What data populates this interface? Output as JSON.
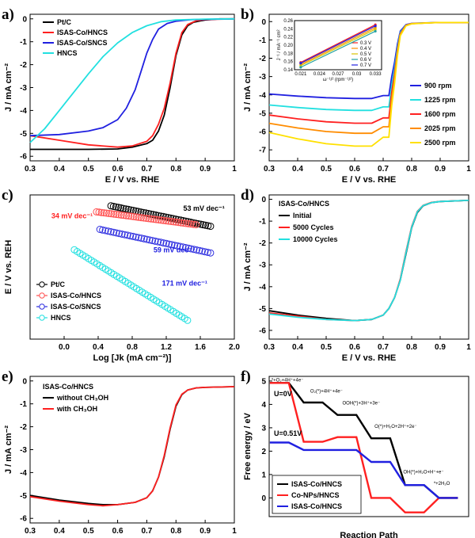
{
  "chart_data": [
    {
      "panel": "a)",
      "type": "line",
      "xlabel": "E / V vs. RHE",
      "ylabel": "J / mA cm⁻²",
      "xlim": [
        0.3,
        1.0
      ],
      "ylim": [
        -6.2,
        0.2
      ],
      "xticks": [
        0.3,
        0.4,
        0.5,
        0.6,
        0.7,
        0.8,
        0.9,
        1.0
      ],
      "yticks": [
        -6,
        -5,
        -4,
        -3,
        -2,
        -1,
        0
      ],
      "legend": "top-left",
      "series": [
        {
          "name": "Pt/C",
          "color": "#000000",
          "x": [
            0.3,
            0.4,
            0.5,
            0.6,
            0.65,
            0.7,
            0.72,
            0.74,
            0.76,
            0.78,
            0.8,
            0.82,
            0.84,
            0.86,
            0.9,
            0.95,
            1.0
          ],
          "y": [
            -5.7,
            -5.7,
            -5.7,
            -5.68,
            -5.6,
            -5.45,
            -5.3,
            -4.9,
            -4.2,
            -3.0,
            -1.6,
            -0.7,
            -0.3,
            -0.15,
            -0.05,
            0.0,
            0.0
          ]
        },
        {
          "name": "ISAS-Co/HNCS",
          "color": "#ff2020",
          "x": [
            0.3,
            0.4,
            0.5,
            0.6,
            0.65,
            0.7,
            0.72,
            0.74,
            0.76,
            0.78,
            0.8,
            0.82,
            0.84,
            0.87,
            0.9,
            1.0
          ],
          "y": [
            -5.1,
            -5.3,
            -5.5,
            -5.6,
            -5.55,
            -5.35,
            -5.1,
            -4.6,
            -3.9,
            -2.8,
            -1.5,
            -0.6,
            -0.25,
            -0.08,
            -0.03,
            0.0
          ]
        },
        {
          "name": "ISAS-Co/SNCS",
          "color": "#2020e0",
          "x": [
            0.3,
            0.4,
            0.5,
            0.55,
            0.6,
            0.63,
            0.66,
            0.68,
            0.7,
            0.72,
            0.74,
            0.77,
            0.8,
            0.85,
            0.9,
            1.0
          ],
          "y": [
            -5.1,
            -5.05,
            -4.9,
            -4.75,
            -4.4,
            -3.9,
            -3.1,
            -2.3,
            -1.5,
            -0.9,
            -0.45,
            -0.2,
            -0.1,
            -0.04,
            -0.02,
            0.0
          ]
        },
        {
          "name": "HNCS",
          "color": "#22e0e0",
          "x": [
            0.3,
            0.35,
            0.4,
            0.45,
            0.5,
            0.55,
            0.6,
            0.65,
            0.7,
            0.75,
            0.8,
            0.9,
            1.0
          ],
          "y": [
            -5.4,
            -4.8,
            -4.0,
            -3.2,
            -2.4,
            -1.65,
            -1.05,
            -0.6,
            -0.3,
            -0.12,
            -0.05,
            -0.01,
            0.0
          ]
        }
      ]
    },
    {
      "panel": "b)",
      "type": "line",
      "xlabel": "E / V vs. RHE",
      "ylabel": "J / mA cm⁻²",
      "xlim": [
        0.3,
        1.0
      ],
      "ylim": [
        -7.6,
        0.4
      ],
      "xticks": [
        0.3,
        0.4,
        0.5,
        0.6,
        0.7,
        0.8,
        0.9,
        1.0
      ],
      "yticks": [
        -7,
        -6,
        -5,
        -4,
        -3,
        -2,
        -1,
        0
      ],
      "legend": "bottom-right",
      "series": [
        {
          "name": "900 rpm",
          "color": "#2020e0",
          "plateau": -3.95,
          "dip": -4.2
        },
        {
          "name": "1225 rpm",
          "color": "#22e0e0",
          "plateau": -4.55,
          "dip": -4.85
        },
        {
          "name": "1600 rpm",
          "color": "#ff2020",
          "plateau": -5.1,
          "dip": -5.55
        },
        {
          "name": "2025 rpm",
          "color": "#ff8c00",
          "plateau": -5.55,
          "dip": -6.1
        },
        {
          "name": "2500 rpm",
          "color": "#ffe000",
          "plateau": -6.05,
          "dip": -6.8
        }
      ],
      "inset": {
        "xlabel": "ω⁻¹/² (rpm⁻¹/²)",
        "ylabel": "J⁻¹ / mA⁻¹ cm²",
        "xlim": [
          0.02,
          0.034
        ],
        "ylim": [
          0.14,
          0.26
        ],
        "xticks": [
          0.021,
          0.024,
          0.027,
          0.03,
          0.033
        ],
        "yticks": [
          0.14,
          0.16,
          0.18,
          0.2,
          0.22,
          0.24,
          0.26
        ],
        "series": [
          {
            "name": "0.3 V",
            "color": "#ff2020",
            "x": [
              0.021,
              0.033
            ],
            "y": [
              0.158,
              0.25
            ]
          },
          {
            "name": "0.4 V",
            "color": "#ff8c00",
            "x": [
              0.021,
              0.033
            ],
            "y": [
              0.153,
              0.243
            ]
          },
          {
            "name": "0.5 V",
            "color": "#d8c000",
            "x": [
              0.021,
              0.033
            ],
            "y": [
              0.15,
              0.239
            ]
          },
          {
            "name": "0.6 V",
            "color": "#22a0a0",
            "x": [
              0.021,
              0.033
            ],
            "y": [
              0.146,
              0.234
            ]
          },
          {
            "name": "0.7 V",
            "color": "#2020e0",
            "x": [
              0.021,
              0.033
            ],
            "y": [
              0.156,
              0.247
            ]
          }
        ]
      }
    },
    {
      "panel": "c)",
      "type": "scatter",
      "xlabel": "Log [Jk (mA cm⁻²)]",
      "ylabel": "E / V vs. REH",
      "xlim": [
        -0.4,
        2.0
      ],
      "ylim": [
        0.38,
        0.84
      ],
      "xticks": [
        0.0,
        0.4,
        0.8,
        1.2,
        1.6,
        2.0
      ],
      "xtick_labels": [
        "0.0",
        "0.4",
        "0.8",
        "1.2",
        "1.6",
        "2.0"
      ],
      "legend": "bottom-left",
      "series": [
        {
          "name": "Pt/C",
          "color": "#000000",
          "x": [
            0.55,
            1.72
          ],
          "y": [
            0.805,
            0.74
          ]
        },
        {
          "name": "ISAS-Co/HNCS",
          "color": "#ff5050",
          "x": [
            0.38,
            1.55
          ],
          "y": [
            0.786,
            0.745
          ]
        },
        {
          "name": "ISAS-Co/SNCS",
          "color": "#3030e0",
          "x": [
            0.42,
            1.72
          ],
          "y": [
            0.73,
            0.655
          ]
        },
        {
          "name": "HNCS",
          "color": "#22e0e0",
          "x": [
            0.12,
            1.45
          ],
          "y": [
            0.665,
            0.44
          ]
        }
      ],
      "annotations": [
        {
          "text": "53 mV dec⁻¹",
          "color": "#000000",
          "x": 1.4,
          "y": 0.79
        },
        {
          "text": "34 mV dec⁻¹",
          "color": "#ff2020",
          "x": -0.15,
          "y": 0.765
        },
        {
          "text": "59 mV dec⁻¹",
          "color": "#2020e0",
          "x": 1.05,
          "y": 0.657
        },
        {
          "text": "171 mV dec⁻¹",
          "color": "#2020e0",
          "x": 1.15,
          "y": 0.55
        }
      ]
    },
    {
      "panel": "d)",
      "type": "line",
      "xlabel": "E / V vs. RHE",
      "ylabel": "J / mA cm⁻²",
      "xlim": [
        0.3,
        1.0
      ],
      "ylim": [
        -6.4,
        0.2
      ],
      "xticks": [
        0.3,
        0.4,
        0.5,
        0.6,
        0.7,
        0.8,
        0.9,
        1.0
      ],
      "yticks": [
        -6,
        -5,
        -4,
        -3,
        -2,
        -1,
        0
      ],
      "legend_title": "ISAS-Co/HNCS",
      "legend": "top-left",
      "series": [
        {
          "name": "Initial",
          "color": "#000000",
          "x": [
            0.3,
            0.4,
            0.5,
            0.6,
            0.66,
            0.7,
            0.72,
            0.74,
            0.76,
            0.78,
            0.8,
            0.82,
            0.84,
            0.87,
            0.9,
            1.0
          ],
          "y": [
            -5.1,
            -5.3,
            -5.45,
            -5.55,
            -5.5,
            -5.3,
            -5.0,
            -4.5,
            -3.7,
            -2.5,
            -1.3,
            -0.6,
            -0.3,
            -0.15,
            -0.1,
            -0.05
          ]
        },
        {
          "name": "5000 Cycles",
          "color": "#ff2020",
          "x": [
            0.3,
            0.4,
            0.5,
            0.6,
            0.66,
            0.7,
            0.72,
            0.74,
            0.76,
            0.78,
            0.8,
            0.82,
            0.84,
            0.87,
            0.9,
            1.0
          ],
          "y": [
            -5.2,
            -5.35,
            -5.5,
            -5.55,
            -5.5,
            -5.3,
            -5.0,
            -4.5,
            -3.65,
            -2.4,
            -1.25,
            -0.55,
            -0.28,
            -0.14,
            -0.1,
            -0.05
          ]
        },
        {
          "name": "10000 Cycles",
          "color": "#22e0e0",
          "x": [
            0.3,
            0.4,
            0.5,
            0.6,
            0.66,
            0.7,
            0.72,
            0.74,
            0.76,
            0.78,
            0.8,
            0.82,
            0.84,
            0.87,
            0.9,
            1.0
          ],
          "y": [
            -5.25,
            -5.4,
            -5.5,
            -5.55,
            -5.5,
            -5.3,
            -5.0,
            -4.5,
            -3.7,
            -2.45,
            -1.28,
            -0.57,
            -0.29,
            -0.15,
            -0.1,
            -0.05
          ]
        }
      ]
    },
    {
      "panel": "e)",
      "type": "line",
      "xlabel": "E / V vs. RHE",
      "ylabel": "J / mA cm⁻²",
      "xlim": [
        0.3,
        1.0
      ],
      "ylim": [
        -6.2,
        0.2
      ],
      "xticks": [
        0.3,
        0.4,
        0.5,
        0.6,
        0.7,
        0.8,
        0.9,
        1.0
      ],
      "yticks": [
        -6,
        -5,
        -4,
        -3,
        -2,
        -1,
        0
      ],
      "legend_title": "ISAS-Co/HNCS",
      "legend": "top-left",
      "series": [
        {
          "name": "without CH₃OH",
          "color": "#000000",
          "x": [
            0.3,
            0.4,
            0.5,
            0.55,
            0.6,
            0.66,
            0.7,
            0.72,
            0.74,
            0.76,
            0.78,
            0.8,
            0.82,
            0.84,
            0.87,
            0.9,
            1.0
          ],
          "y": [
            -5.0,
            -5.2,
            -5.35,
            -5.4,
            -5.4,
            -5.3,
            -5.1,
            -4.8,
            -4.2,
            -3.3,
            -2.1,
            -1.1,
            -0.6,
            -0.4,
            -0.3,
            -0.28,
            -0.25
          ]
        },
        {
          "name": "with CH₃OH",
          "color": "#ff2020",
          "x": [
            0.3,
            0.4,
            0.5,
            0.55,
            0.6,
            0.66,
            0.7,
            0.72,
            0.74,
            0.76,
            0.78,
            0.8,
            0.82,
            0.84,
            0.87,
            0.9,
            1.0
          ],
          "y": [
            -5.05,
            -5.25,
            -5.4,
            -5.45,
            -5.4,
            -5.3,
            -5.1,
            -4.8,
            -4.2,
            -3.25,
            -2.05,
            -1.05,
            -0.58,
            -0.4,
            -0.3,
            -0.28,
            -0.25
          ]
        }
      ]
    },
    {
      "panel": "f)",
      "type": "line",
      "xlabel": "Reaction Path",
      "ylabel": "Free energy / eV",
      "ylim": [
        -0.8,
        5.2
      ],
      "yticks": [
        0,
        1,
        2,
        3,
        4,
        5
      ],
      "legend": "bottom-left",
      "steps": [
        "*+O₂+4H⁺+4e⁻",
        "O₂(*)+4H⁺+4e⁻",
        "OOH(*)+3H⁺+3e⁻",
        "O(*)+H₂O+2H⁺+2e⁻",
        "OH(*)+H₂O+H⁺+e⁻",
        "*+2H₂O"
      ],
      "state_labels": [
        "U=0V",
        "U=0.51V"
      ],
      "series": [
        {
          "name": "ISAS-Co/HNCS",
          "color": "#000000",
          "levels": [
            4.92,
            4.08,
            3.55,
            2.55,
            0.55,
            0.0
          ]
        },
        {
          "name": "Co-NPs/HNCS",
          "color": "#ff2020",
          "levels": [
            4.92,
            2.4,
            2.6,
            0.0,
            -0.62,
            0.0
          ]
        },
        {
          "name": "ISAS-Co/HNCS",
          "color": "#2020e0",
          "levels": [
            2.37,
            2.05,
            2.05,
            1.54,
            0.55,
            0.0
          ]
        }
      ]
    }
  ]
}
